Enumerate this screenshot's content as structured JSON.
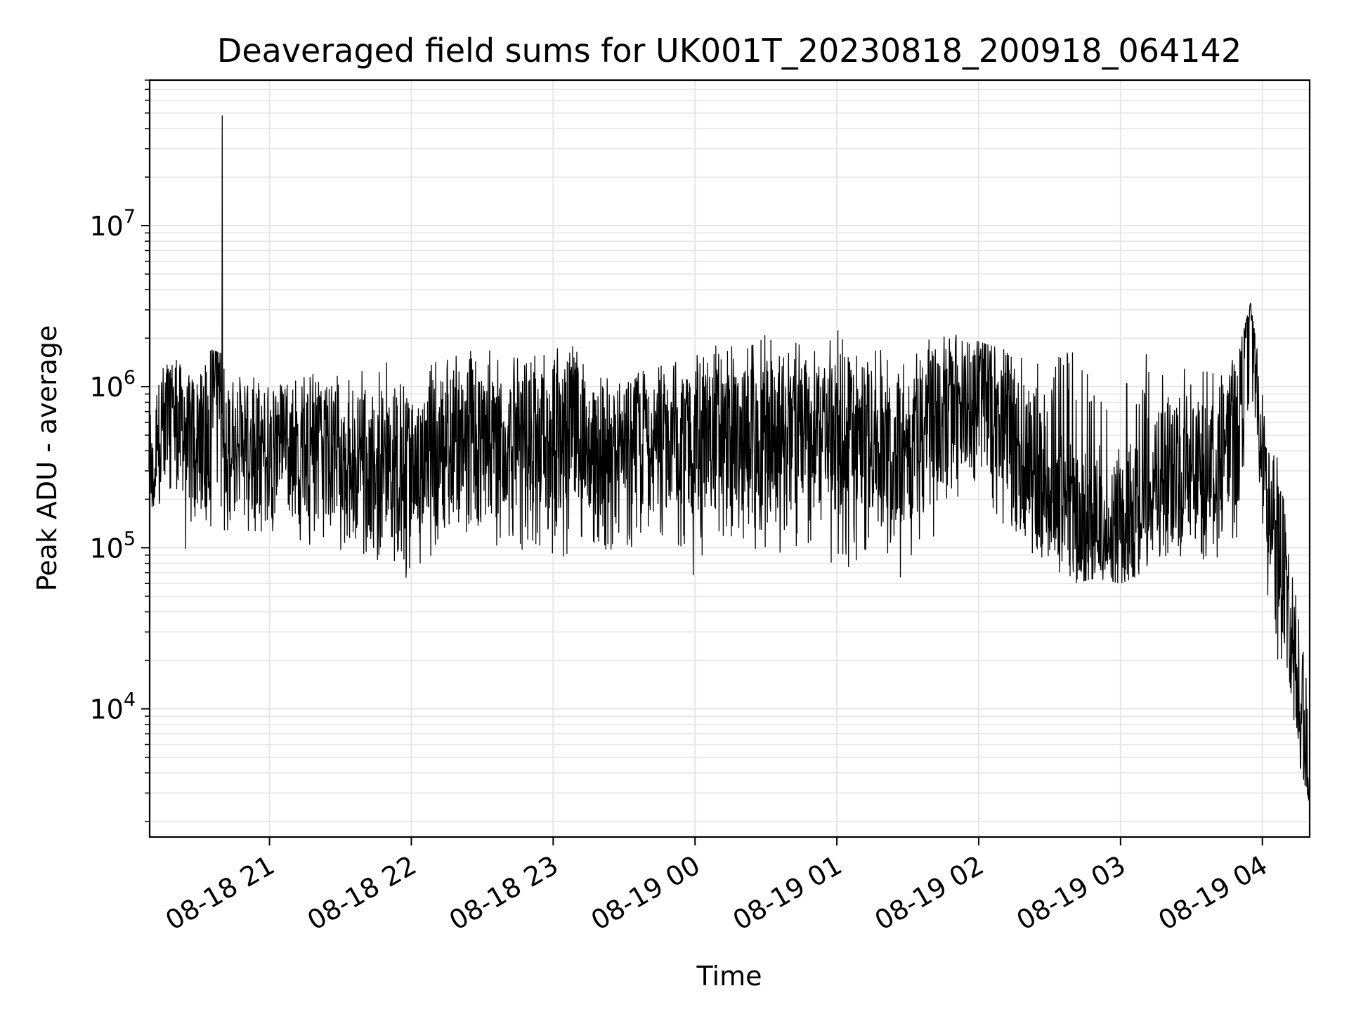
{
  "chart_data": {
    "type": "line",
    "title": "Deaveraged field sums for UK001T_20230818_200918_064142",
    "xlabel": "Time",
    "ylabel": "Peak ADU - average",
    "y_scale": "log",
    "grid": true,
    "grid_color": "#e6e6e6",
    "line_color": "#000000",
    "xlim": [
      "2023-08-18 20:09:18",
      "2023-08-19 04:20:00"
    ],
    "ylim": [
      1600,
      80000000
    ],
    "x_ticks": [
      {
        "value": "2023-08-18 21:00",
        "label": "08-18 21"
      },
      {
        "value": "2023-08-18 22:00",
        "label": "08-18 22"
      },
      {
        "value": "2023-08-18 23:00",
        "label": "08-18 23"
      },
      {
        "value": "2023-08-19 00:00",
        "label": "08-19 00"
      },
      {
        "value": "2023-08-19 01:00",
        "label": "08-19 01"
      },
      {
        "value": "2023-08-19 02:00",
        "label": "08-19 02"
      },
      {
        "value": "2023-08-19 03:00",
        "label": "08-19 03"
      },
      {
        "value": "2023-08-19 04:00",
        "label": "08-19 04"
      }
    ],
    "y_ticks": [
      {
        "value": 10000,
        "base": "10",
        "exp": "4"
      },
      {
        "value": 100000,
        "base": "10",
        "exp": "5"
      },
      {
        "value": 1000000,
        "base": "10",
        "exp": "6"
      },
      {
        "value": 10000000,
        "base": "10",
        "exp": "7"
      }
    ],
    "series": [
      {
        "x": [
          "2023-08-18 20:09",
          "2023-08-18 20:15",
          "2023-08-18 20:20",
          "2023-08-18 20:25",
          "2023-08-18 20:30",
          "2023-08-18 20:35",
          "2023-08-18 20:40",
          "2023-08-18 20:45",
          "2023-08-18 20:50",
          "2023-08-18 20:55",
          "2023-08-18 21:00",
          "2023-08-18 21:10",
          "2023-08-18 21:20",
          "2023-08-18 21:30",
          "2023-08-18 21:40",
          "2023-08-18 21:50",
          "2023-08-18 22:00",
          "2023-08-18 22:10",
          "2023-08-18 22:20",
          "2023-08-18 22:30",
          "2023-08-18 22:40",
          "2023-08-18 22:50",
          "2023-08-18 23:00",
          "2023-08-18 23:10",
          "2023-08-18 23:20",
          "2023-08-18 23:30",
          "2023-08-18 23:40",
          "2023-08-18 23:50",
          "2023-08-19 00:00",
          "2023-08-19 00:10",
          "2023-08-19 00:20",
          "2023-08-19 00:30",
          "2023-08-19 00:40",
          "2023-08-19 00:50",
          "2023-08-19 01:00",
          "2023-08-19 01:10",
          "2023-08-19 01:20",
          "2023-08-19 01:30",
          "2023-08-19 01:40",
          "2023-08-19 01:50",
          "2023-08-19 02:00",
          "2023-08-19 02:10",
          "2023-08-19 02:20",
          "2023-08-19 02:30",
          "2023-08-19 02:40",
          "2023-08-19 02:50",
          "2023-08-19 03:00",
          "2023-08-19 03:10",
          "2023-08-19 03:20",
          "2023-08-19 03:30",
          "2023-08-19 03:40",
          "2023-08-19 03:50",
          "2023-08-19 03:55",
          "2023-08-19 04:00",
          "2023-08-19 04:05",
          "2023-08-19 04:10",
          "2023-08-19 04:15",
          "2023-08-19 04:20"
        ],
        "y": [
          200000,
          550000,
          700000,
          400000,
          500000,
          500000,
          48000000,
          450000,
          400000,
          420000,
          430000,
          420000,
          400000,
          380000,
          350000,
          330000,
          320000,
          400000,
          450000,
          500000,
          450000,
          420000,
          500000,
          480000,
          420000,
          400000,
          420000,
          430000,
          450000,
          460000,
          480000,
          520000,
          540000,
          550000,
          480000,
          500000,
          450000,
          400000,
          600000,
          850000,
          900000,
          700000,
          300000,
          220000,
          150000,
          120000,
          110000,
          200000,
          300000,
          320000,
          280000,
          600000,
          3300000,
          350000,
          80000,
          45000,
          15000,
          2800
        ],
        "upper": [
          800000,
          1300000,
          1500000,
          1200000,
          1100000,
          1700000,
          1600000,
          1100000,
          1200000,
          1100000,
          1000000,
          1200000,
          1300000,
          1200000,
          1300000,
          1500000,
          1200000,
          1500000,
          1700000,
          1900000,
          1600000,
          1400000,
          2200000,
          1700000,
          1300000,
          1200000,
          1300000,
          1400000,
          1800000,
          1900000,
          1700000,
          2100000,
          1900000,
          2000000,
          2300000,
          1600000,
          1700000,
          1800000,
          2200000,
          2100000,
          1900000,
          1700000,
          1600000,
          1200000,
          2300000,
          800000,
          1000000,
          1600000,
          1600000,
          1400000,
          1300000,
          1700000,
          3300000,
          1000000,
          500000,
          200000,
          50000,
          20000
        ],
        "lower": [
          160000,
          200000,
          260000,
          80000,
          150000,
          90000,
          100000,
          160000,
          130000,
          120000,
          100000,
          110000,
          95000,
          90000,
          85000,
          80000,
          50000,
          100000,
          120000,
          110000,
          90000,
          100000,
          85000,
          90000,
          95000,
          90000,
          100000,
          110000,
          65000,
          100000,
          110000,
          90000,
          95000,
          100000,
          60000,
          80000,
          90000,
          55000,
          100000,
          200000,
          250000,
          130000,
          80000,
          65000,
          60000,
          65000,
          60000,
          70000,
          90000,
          85000,
          80000,
          120000,
          300000,
          100000,
          22000,
          15000,
          5000,
          2600
        ]
      }
    ]
  }
}
